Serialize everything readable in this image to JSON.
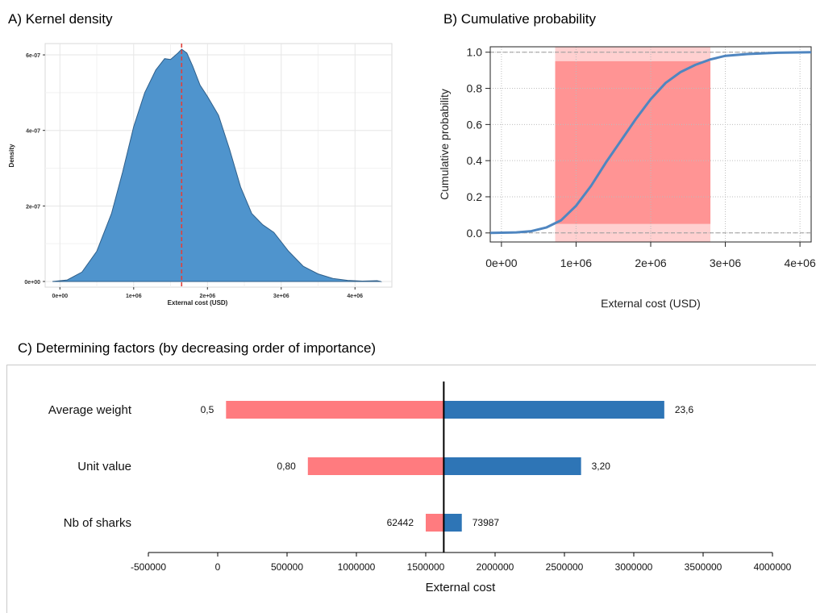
{
  "panels": {
    "a_title": "A) Kernel density",
    "b_title": "B) Cumulative probability",
    "c_title": "C) Determining factors  (by decreasing order of importance)"
  },
  "chart_data": [
    {
      "id": "A",
      "type": "area",
      "title": "A) Kernel density",
      "xlabel": "External cost (USD)",
      "ylabel": "Density",
      "xlim": [
        -200000,
        4500000
      ],
      "ylim": [
        -1.5e-08,
        6.3e-07
      ],
      "x_tick_values": [
        0,
        1000000,
        2000000,
        3000000,
        4000000
      ],
      "x_tick_labels": [
        "0e+00",
        "1e+06",
        "2e+06",
        "3e+06",
        "4e+06"
      ],
      "y_tick_values": [
        0,
        2e-07,
        4e-07,
        6e-07
      ],
      "y_tick_labels": [
        "0e+00",
        "2e-07",
        "4e-07",
        "6e-07"
      ],
      "fill_color": "#4f94cd",
      "vline": {
        "x": 1650000,
        "color": "#e0403a",
        "style": "dashed"
      },
      "grid": true,
      "points": [
        {
          "x": -100000,
          "y": 0
        },
        {
          "x": 100000,
          "y": 4e-09
        },
        {
          "x": 300000,
          "y": 2.5e-08
        },
        {
          "x": 500000,
          "y": 8e-08
        },
        {
          "x": 700000,
          "y": 1.8e-07
        },
        {
          "x": 850000,
          "y": 2.9e-07
        },
        {
          "x": 1000000,
          "y": 4.1e-07
        },
        {
          "x": 1150000,
          "y": 5e-07
        },
        {
          "x": 1300000,
          "y": 5.6e-07
        },
        {
          "x": 1420000,
          "y": 5.9e-07
        },
        {
          "x": 1500000,
          "y": 5.88e-07
        },
        {
          "x": 1600000,
          "y": 6.05e-07
        },
        {
          "x": 1650000,
          "y": 6.15e-07
        },
        {
          "x": 1720000,
          "y": 6.05e-07
        },
        {
          "x": 1800000,
          "y": 5.7e-07
        },
        {
          "x": 1900000,
          "y": 5.2e-07
        },
        {
          "x": 2000000,
          "y": 4.9e-07
        },
        {
          "x": 2150000,
          "y": 4.4e-07
        },
        {
          "x": 2300000,
          "y": 3.5e-07
        },
        {
          "x": 2450000,
          "y": 2.5e-07
        },
        {
          "x": 2600000,
          "y": 1.8e-07
        },
        {
          "x": 2750000,
          "y": 1.5e-07
        },
        {
          "x": 2900000,
          "y": 1.3e-07
        },
        {
          "x": 3100000,
          "y": 8e-08
        },
        {
          "x": 3300000,
          "y": 4e-08
        },
        {
          "x": 3500000,
          "y": 2e-08
        },
        {
          "x": 3700000,
          "y": 8e-09
        },
        {
          "x": 3900000,
          "y": 3e-09
        },
        {
          "x": 4100000,
          "y": 1e-09
        },
        {
          "x": 4300000,
          "y": 2e-09
        },
        {
          "x": 4350000,
          "y": 0
        }
      ]
    },
    {
      "id": "B",
      "type": "line",
      "title": "B) Cumulative probability",
      "xlabel": "External cost (USD)",
      "ylabel": "Cumulative probability",
      "xlim": [
        -150000,
        4150000
      ],
      "ylim": [
        -0.05,
        1.03
      ],
      "x_tick_values": [
        0,
        1000000,
        2000000,
        3000000,
        4000000
      ],
      "x_tick_labels": [
        "0e+00",
        "1e+06",
        "2e+06",
        "3e+06",
        "4e+06"
      ],
      "y_tick_values": [
        0.0,
        0.2,
        0.4,
        0.6,
        0.8,
        1.0
      ],
      "y_tick_labels": [
        "0.0",
        "0.2",
        "0.4",
        "0.6",
        "0.8",
        "1.0"
      ],
      "hlines": [
        0,
        1
      ],
      "line_color": "#4f86c0",
      "shaded_interval": {
        "x_from": 720000,
        "x_to": 2800000,
        "inner_y_from": 0.05,
        "inner_y_to": 0.95,
        "color": "#ff8a8a"
      },
      "grid": true,
      "points": [
        {
          "x": -150000,
          "y": 0.0
        },
        {
          "x": 200000,
          "y": 0.003
        },
        {
          "x": 400000,
          "y": 0.01
        },
        {
          "x": 600000,
          "y": 0.03
        },
        {
          "x": 800000,
          "y": 0.07
        },
        {
          "x": 1000000,
          "y": 0.15
        },
        {
          "x": 1200000,
          "y": 0.26
        },
        {
          "x": 1400000,
          "y": 0.39
        },
        {
          "x": 1600000,
          "y": 0.51
        },
        {
          "x": 1800000,
          "y": 0.63
        },
        {
          "x": 2000000,
          "y": 0.74
        },
        {
          "x": 2200000,
          "y": 0.83
        },
        {
          "x": 2400000,
          "y": 0.89
        },
        {
          "x": 2600000,
          "y": 0.93
        },
        {
          "x": 2800000,
          "y": 0.96
        },
        {
          "x": 3000000,
          "y": 0.98
        },
        {
          "x": 3300000,
          "y": 0.99
        },
        {
          "x": 3700000,
          "y": 0.997
        },
        {
          "x": 4150000,
          "y": 1.0
        }
      ]
    },
    {
      "id": "C",
      "type": "bar",
      "orientation": "horizontal",
      "title": "C) Determining factors  (by decreasing order of importance)",
      "xlabel": "External cost",
      "ylabel": "",
      "xlim": [
        -500000,
        4000000
      ],
      "x_tick_values": [
        -500000,
        0,
        500000,
        1000000,
        1500000,
        2000000,
        2500000,
        3000000,
        3500000,
        4000000
      ],
      "x_tick_labels": [
        "-500000",
        "0",
        "500000",
        "1000000",
        "1500000",
        "2000000",
        "2500000",
        "3000000",
        "3500000",
        "4000000"
      ],
      "baseline": 1630000,
      "low_color": "#ff7b7f",
      "high_color": "#2e75b6",
      "categories": [
        "Average weight",
        "Unit value",
        "Nb of sharks"
      ],
      "low_values": [
        60000,
        650000,
        1500000
      ],
      "high_values": [
        3220000,
        2620000,
        1760000
      ],
      "low_labels": [
        "0,5",
        "0,80",
        "62442"
      ],
      "high_labels": [
        "23,6",
        "3,20",
        "73987"
      ]
    }
  ]
}
